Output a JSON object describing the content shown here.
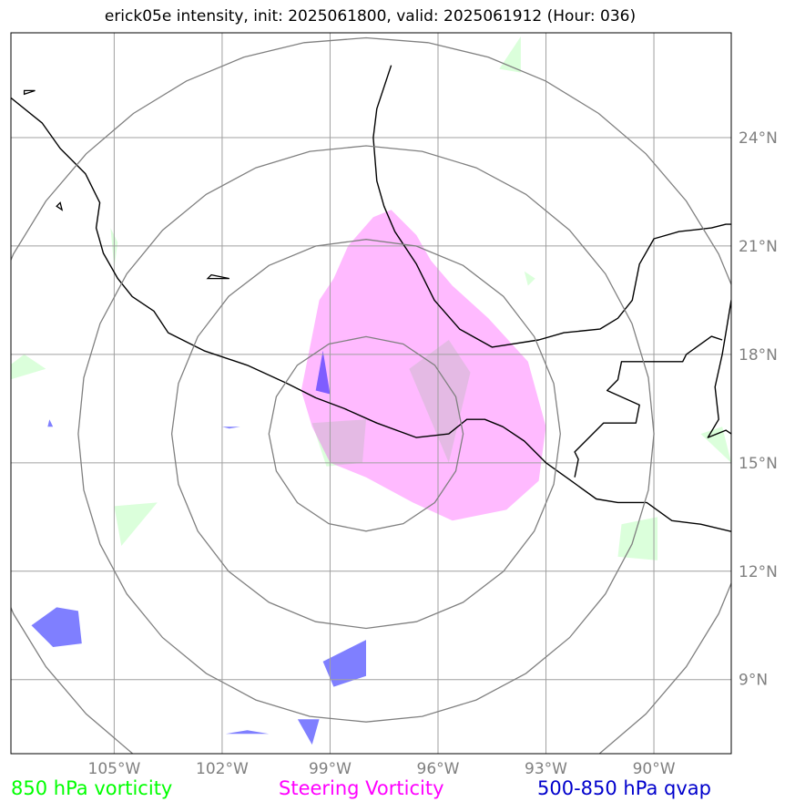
{
  "title": "erick05e intensity, init: 2025061800, valid: 2025061912 (Hour: 036)",
  "map": {
    "lon_range": [
      -107.87,
      -87.85
    ],
    "lat_range": [
      6.95,
      26.9
    ],
    "center": {
      "lon": -98.0,
      "lat": 15.8
    },
    "range_ring_degrees": [
      2.7,
      5.4,
      8.0,
      11.0
    ],
    "gridlines": true,
    "lon_ticks": [
      {
        "value": -105,
        "label": "105°W"
      },
      {
        "value": -102,
        "label": "102°W"
      },
      {
        "value": -99,
        "label": "99°W"
      },
      {
        "value": -96,
        "label": "96°W"
      },
      {
        "value": -93,
        "label": "93°W"
      },
      {
        "value": -90,
        "label": "90°W"
      }
    ],
    "lat_ticks": [
      {
        "value": 24,
        "label": "24°N"
      },
      {
        "value": 21,
        "label": "21°N"
      },
      {
        "value": 18,
        "label": "18°N"
      },
      {
        "value": 15,
        "label": "15°N"
      },
      {
        "value": 12,
        "label": "12°N"
      },
      {
        "value": 9,
        "label": "9°N"
      }
    ]
  },
  "colors": {
    "vort850": "#c8ffc8",
    "steering": "#ff00ff",
    "qvap": "#0000ff",
    "coast": "#000000",
    "grid": "#a0a0a0",
    "rings": "#808080"
  },
  "legend": {
    "vort850": {
      "label": "850 hPa vorticity",
      "color": "#00ff00"
    },
    "steering": {
      "label": "Steering Vorticity",
      "color": "#ff00ff"
    },
    "qvap": {
      "label": "500-850 hPa qvap",
      "color": "#0000cc"
    }
  },
  "fields": {
    "steering_vorticity": [
      [
        [
          -97.3,
          22.0
        ],
        [
          -96.6,
          21.3
        ],
        [
          -96.2,
          20.6
        ],
        [
          -95.6,
          19.9
        ],
        [
          -94.6,
          19.0
        ],
        [
          -93.5,
          17.8
        ],
        [
          -93.0,
          16.0
        ],
        [
          -93.2,
          14.5
        ],
        [
          -94.1,
          13.7
        ],
        [
          -95.6,
          13.4
        ],
        [
          -96.7,
          13.9
        ],
        [
          -98.0,
          14.6
        ],
        [
          -99.0,
          15.0
        ],
        [
          -99.5,
          16.0
        ],
        [
          -99.8,
          17.0
        ],
        [
          -99.5,
          18.5
        ],
        [
          -99.3,
          19.5
        ],
        [
          -98.9,
          20.1
        ],
        [
          -98.5,
          21.0
        ],
        [
          -97.8,
          21.8
        ]
      ]
    ],
    "vort850": [
      [
        [
          -95.7,
          15.0
        ],
        [
          -96.8,
          17.6
        ],
        [
          -95.7,
          18.4
        ],
        [
          -95.1,
          17.5
        ]
      ],
      [
        [
          -99.5,
          16.1
        ],
        [
          -98.0,
          16.2
        ],
        [
          -98.1,
          15.0
        ],
        [
          -99.1,
          14.9
        ]
      ],
      [
        [
          -94.3,
          25.9
        ],
        [
          -93.7,
          26.8
        ],
        [
          -93.7,
          25.8
        ]
      ],
      [
        [
          -107.9,
          17.7
        ],
        [
          -107.5,
          18.0
        ],
        [
          -106.9,
          17.6
        ],
        [
          -107.9,
          17.3
        ]
      ],
      [
        [
          -104.8,
          12.7
        ],
        [
          -103.8,
          13.9
        ],
        [
          -105.0,
          13.8
        ]
      ],
      [
        [
          -89.9,
          12.3
        ],
        [
          -89.9,
          13.5
        ],
        [
          -90.9,
          13.3
        ],
        [
          -91.0,
          12.4
        ]
      ],
      [
        [
          -88.1,
          16.0
        ],
        [
          -87.85,
          15.0
        ],
        [
          -88.7,
          15.8
        ]
      ],
      [
        [
          -104.9,
          21.1
        ],
        [
          -105.0,
          20.4
        ],
        [
          -105.1,
          21.5
        ]
      ],
      [
        [
          -93.5,
          19.9
        ],
        [
          -93.6,
          20.3
        ],
        [
          -93.3,
          20.1
        ]
      ]
    ],
    "qvap": [
      [
        [
          -106.6,
          11.0
        ],
        [
          -106.0,
          10.9
        ],
        [
          -105.9,
          10.0
        ],
        [
          -106.7,
          9.9
        ],
        [
          -107.3,
          10.5
        ]
      ],
      [
        [
          -98.0,
          10.1
        ],
        [
          -98.0,
          9.1
        ],
        [
          -98.9,
          8.8
        ],
        [
          -99.2,
          9.5
        ]
      ],
      [
        [
          -99.3,
          7.9
        ],
        [
          -99.9,
          7.9
        ],
        [
          -99.5,
          7.2
        ]
      ],
      [
        [
          -101.3,
          7.6
        ],
        [
          -101.9,
          7.5
        ],
        [
          -100.7,
          7.5
        ]
      ],
      [
        [
          -99.2,
          18.1
        ],
        [
          -99.0,
          16.9
        ],
        [
          -99.4,
          17.0
        ]
      ],
      [
        [
          -102.0,
          16.0
        ],
        [
          -101.5,
          16.0
        ],
        [
          -101.8,
          15.95
        ]
      ],
      [
        [
          -106.8,
          16.2
        ],
        [
          -106.7,
          16.0
        ],
        [
          -106.85,
          16.0
        ]
      ]
    ]
  },
  "coastlines": {
    "pacific_mexico": [
      [
        -107.87,
        25.1
      ],
      [
        -107.0,
        24.4
      ],
      [
        -106.5,
        23.7
      ],
      [
        -105.8,
        23.0
      ],
      [
        -105.4,
        22.2
      ],
      [
        -105.5,
        21.5
      ],
      [
        -105.3,
        20.8
      ],
      [
        -104.9,
        20.1
      ],
      [
        -104.5,
        19.6
      ],
      [
        -103.9,
        19.2
      ],
      [
        -103.5,
        18.6
      ],
      [
        -102.5,
        18.1
      ],
      [
        -101.3,
        17.7
      ],
      [
        -100.2,
        17.2
      ],
      [
        -99.4,
        16.8
      ],
      [
        -98.6,
        16.5
      ],
      [
        -97.7,
        16.1
      ],
      [
        -96.6,
        15.7
      ],
      [
        -95.7,
        15.8
      ],
      [
        -95.2,
        16.2
      ],
      [
        -94.7,
        16.2
      ],
      [
        -94.2,
        16.0
      ],
      [
        -93.6,
        15.6
      ],
      [
        -93.0,
        15.0
      ],
      [
        -92.3,
        14.5
      ],
      [
        -91.6,
        14.0
      ],
      [
        -91.0,
        13.9
      ],
      [
        -90.2,
        13.9
      ],
      [
        -89.5,
        13.4
      ],
      [
        -88.7,
        13.3
      ],
      [
        -87.85,
        13.1
      ]
    ],
    "gulf_mexico": [
      [
        -97.3,
        26.0
      ],
      [
        -97.7,
        24.8
      ],
      [
        -97.8,
        24.0
      ],
      [
        -97.7,
        22.8
      ],
      [
        -97.5,
        22.1
      ],
      [
        -97.2,
        21.4
      ],
      [
        -96.6,
        20.5
      ],
      [
        -96.1,
        19.5
      ],
      [
        -95.4,
        18.7
      ],
      [
        -94.5,
        18.2
      ],
      [
        -93.2,
        18.4
      ],
      [
        -92.5,
        18.6
      ],
      [
        -91.5,
        18.7
      ],
      [
        -91.0,
        19.0
      ],
      [
        -90.6,
        19.5
      ],
      [
        -90.4,
        20.5
      ],
      [
        -90.0,
        21.2
      ],
      [
        -89.3,
        21.4
      ],
      [
        -88.4,
        21.5
      ],
      [
        -88.0,
        21.6
      ],
      [
        -87.85,
        21.6
      ]
    ],
    "yucatan_east": [
      [
        -87.85,
        19.5
      ],
      [
        -88.0,
        18.6
      ],
      [
        -88.1,
        18.0
      ],
      [
        -88.3,
        17.1
      ],
      [
        -88.2,
        16.2
      ],
      [
        -88.5,
        15.7
      ],
      [
        -88.0,
        15.9
      ],
      [
        -87.85,
        15.8
      ]
    ],
    "border_gt_mx": [
      [
        -92.2,
        14.6
      ],
      [
        -92.1,
        15.1
      ],
      [
        -92.2,
        15.3
      ],
      [
        -91.4,
        16.1
      ],
      [
        -90.5,
        16.1
      ],
      [
        -90.4,
        16.6
      ],
      [
        -91.3,
        17.0
      ],
      [
        -91.0,
        17.3
      ],
      [
        -90.9,
        17.8
      ],
      [
        -89.2,
        17.8
      ],
      [
        -89.1,
        18.0
      ],
      [
        -88.4,
        18.5
      ],
      [
        -88.1,
        18.4
      ]
    ],
    "islands": [
      [
        [
          -106.6,
          22.1
        ],
        [
          -106.45,
          22.0
        ],
        [
          -106.5,
          22.2
        ]
      ],
      [
        [
          -102.3,
          20.2
        ],
        [
          -101.8,
          20.1
        ],
        [
          -102.4,
          20.1
        ]
      ],
      [
        [
          -107.5,
          25.3
        ],
        [
          -107.2,
          25.3
        ],
        [
          -107.5,
          25.2
        ]
      ]
    ]
  }
}
